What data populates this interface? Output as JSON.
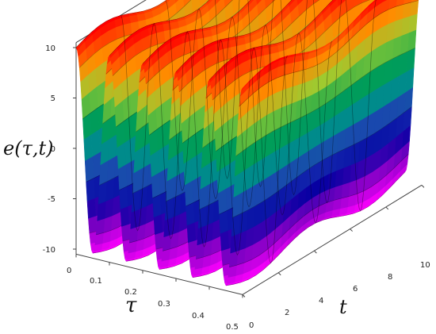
{
  "chart_data": {
    "type": "surface3d",
    "title": "",
    "axes": {
      "tau": {
        "label": "τ",
        "range": [
          0,
          0.5
        ],
        "ticks": [
          "0",
          "0.1",
          "0.2",
          "0.3",
          "0.4",
          "0.5"
        ]
      },
      "t": {
        "label": "t",
        "range": [
          0,
          10
        ],
        "ticks": [
          "0",
          "2",
          "4",
          "6",
          "8",
          "10"
        ]
      },
      "e": {
        "label": "e(τ,t)",
        "range": [
          -10,
          10
        ],
        "ticks": [
          "10",
          "5",
          "0",
          "-5",
          "-10"
        ]
      }
    },
    "surface": {
      "description_formula": "e = 10*cos(2*pi*tau/0.1) roughly, with slight modulation along t",
      "tau_period": 0.1,
      "amplitude_max": 10.5,
      "amplitude_min": -10.5,
      "t_modulation_amplitude": 0.8,
      "t_modulation_period": 6.3
    },
    "colormap": [
      "#ff0000",
      "#ff8c00",
      "#9acd32",
      "#00a050",
      "#008b8b",
      "#1e3cb4",
      "#0000a0",
      "#8a00c8",
      "#ff00ff"
    ]
  }
}
